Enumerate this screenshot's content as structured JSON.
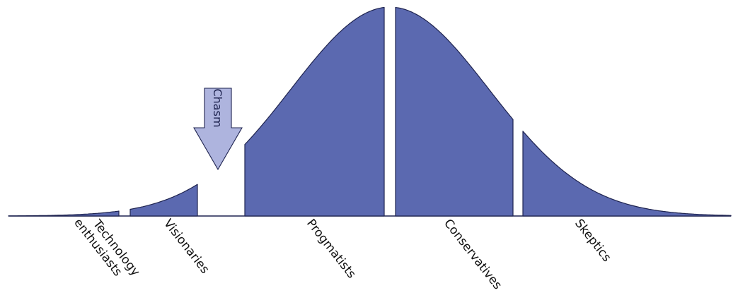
{
  "diagram": {
    "colors": {
      "segment_fill": "#5b69b0",
      "segment_stroke": "#1f2450",
      "arrow_fill": "#aeb4de"
    },
    "chasm_label": "Chasm",
    "segments": [
      {
        "id": "technology-enthusiasts",
        "lines": [
          "Technology",
          "enthusiasts"
        ]
      },
      {
        "id": "visionaries",
        "lines": [
          "Visionaries"
        ]
      },
      {
        "id": "progmatists",
        "lines": [
          "Progmatists"
        ]
      },
      {
        "id": "conservatives",
        "lines": [
          "Conservatives"
        ]
      },
      {
        "id": "skeptics",
        "lines": [
          "Skeptics"
        ]
      }
    ]
  }
}
